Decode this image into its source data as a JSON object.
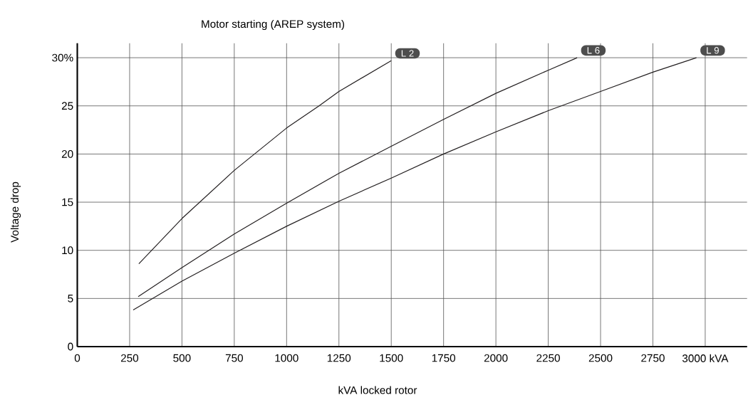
{
  "chart_data": {
    "type": "line",
    "title": "Motor starting (AREP system)",
    "xlabel": "kVA locked rotor",
    "ylabel": "Voltage drop",
    "xlim": [
      0,
      3200
    ],
    "ylim": [
      0,
      31.5
    ],
    "xticks": [
      0,
      250,
      500,
      750,
      1000,
      1250,
      1500,
      1750,
      2000,
      2250,
      2500,
      2750,
      {
        "value": 3000,
        "label": "3000 kVA"
      }
    ],
    "yticks": [
      0,
      5,
      10,
      15,
      20,
      25,
      {
        "value": 30,
        "label": "30%"
      }
    ],
    "grid": true,
    "marker": "none",
    "line_style": "solid",
    "series": [
      {
        "name": "L 2",
        "color": "#231f20",
        "x": [
          294,
          500,
          750,
          1000,
          1155,
          1250,
          1500
        ],
        "values": [
          8.6,
          13.3,
          18.3,
          22.7,
          25.0,
          26.5,
          29.7
        ]
      },
      {
        "name": "L 6",
        "color": "#231f20",
        "x": [
          291,
          500,
          750,
          1000,
          1250,
          1500,
          1750,
          2000,
          2250,
          2388
        ],
        "values": [
          5.2,
          8.2,
          11.7,
          14.9,
          18.0,
          20.8,
          23.6,
          26.3,
          28.7,
          30.0
        ]
      },
      {
        "name": "L 9",
        "color": "#231f20",
        "x": [
          267,
          500,
          750,
          1000,
          1250,
          1500,
          1750,
          2000,
          2250,
          2500,
          2750,
          2958
        ],
        "values": [
          3.8,
          6.8,
          9.7,
          12.5,
          15.1,
          17.5,
          20.0,
          22.3,
          24.5,
          26.5,
          28.5,
          30.0
        ]
      }
    ]
  }
}
